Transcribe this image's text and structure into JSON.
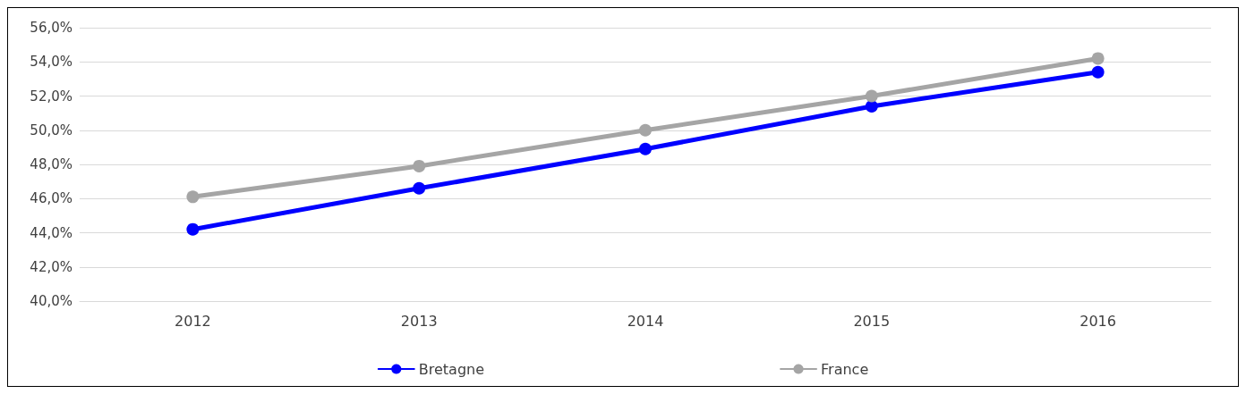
{
  "chart_data": {
    "type": "line",
    "categories": [
      "2012",
      "2013",
      "2014",
      "2015",
      "2016"
    ],
    "series": [
      {
        "name": "Bretagne",
        "color": "#0000ff",
        "values": [
          44.2,
          46.6,
          48.9,
          51.4,
          53.4
        ]
      },
      {
        "name": "France",
        "color": "#a5a5a5",
        "values": [
          46.1,
          47.9,
          50.0,
          52.0,
          54.2
        ]
      }
    ],
    "ylim": [
      40,
      56
    ],
    "yticks": [
      {
        "value": 40,
        "label": "40,0%"
      },
      {
        "value": 42,
        "label": "42,0%"
      },
      {
        "value": 44,
        "label": "44,0%"
      },
      {
        "value": 46,
        "label": "46,0%"
      },
      {
        "value": 48,
        "label": "48,0%"
      },
      {
        "value": 50,
        "label": "50,0%"
      },
      {
        "value": 52,
        "label": "52,0%"
      },
      {
        "value": 54,
        "label": "54,0%"
      },
      {
        "value": 56,
        "label": "56,0%"
      }
    ],
    "grid": "y",
    "legend": "bottom",
    "marker": "circle",
    "line_style": "solid"
  }
}
